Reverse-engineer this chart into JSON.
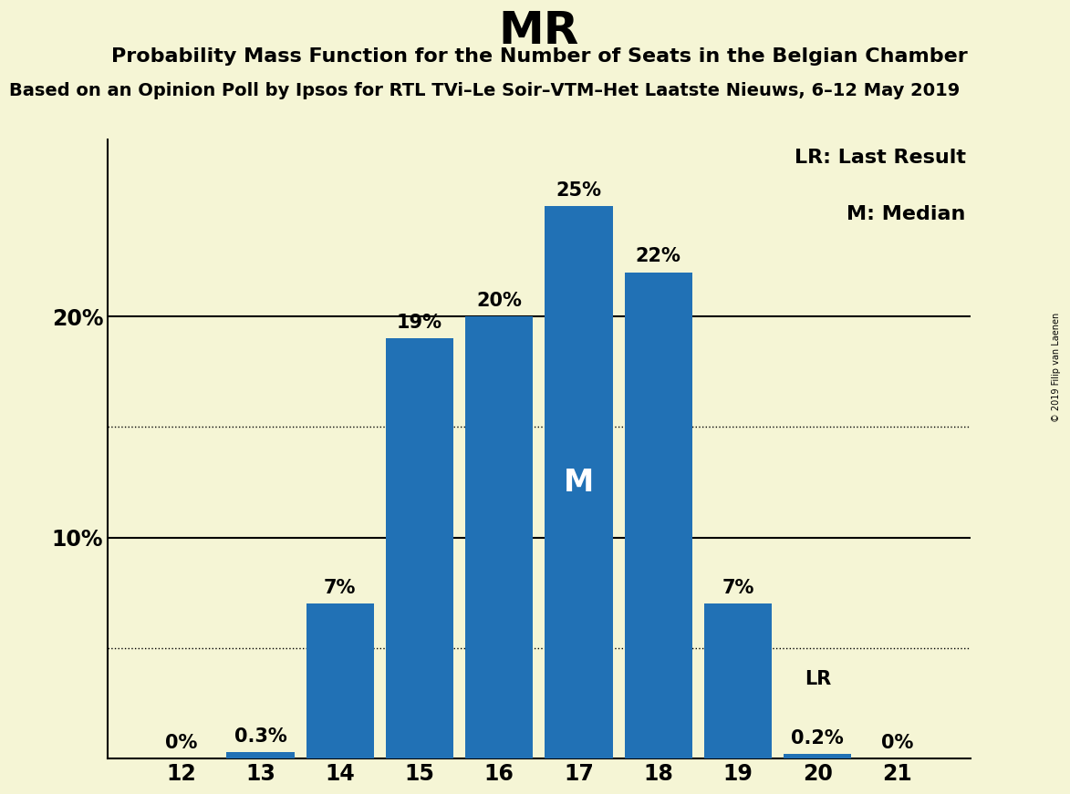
{
  "title": "MR",
  "subtitle": "Probability Mass Function for the Number of Seats in the Belgian Chamber",
  "subsubtitle": "Based on an Opinion Poll by Ipsos for RTL TVi–Le Soir–VTM–Het Laatste Nieuws, 6–12 May 2019",
  "watermark": "© 2019 Filip van Laenen",
  "categories": [
    12,
    13,
    14,
    15,
    16,
    17,
    18,
    19,
    20,
    21
  ],
  "values": [
    0.0,
    0.3,
    7.0,
    19.0,
    20.0,
    25.0,
    22.0,
    7.0,
    0.2,
    0.0
  ],
  "bar_color": "#2171b5",
  "background_color": "#f5f5d5",
  "median_seat": 17,
  "lr_seat": 20,
  "ylim": [
    0,
    28
  ],
  "dotted_lines": [
    5,
    15
  ],
  "solid_lines": [
    10,
    20
  ],
  "title_fontsize": 36,
  "subtitle_fontsize": 16,
  "subsubtitle_fontsize": 14,
  "bar_label_fontsize": 15,
  "tick_fontsize": 17,
  "legend_fontsize": 16,
  "median_fontsize": 24
}
